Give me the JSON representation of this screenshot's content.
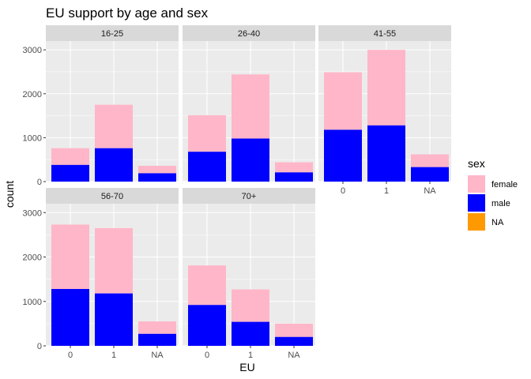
{
  "chart_data": {
    "type": "bar",
    "stacked": true,
    "title": "EU support by age and sex",
    "xlabel": "EU",
    "ylabel": "count",
    "ylim": [
      0,
      3200
    ],
    "y_ticks": [
      0,
      1000,
      2000,
      3000
    ],
    "categories": [
      "0",
      "1",
      "NA"
    ],
    "series_colors": {
      "female": "#FFB6C8",
      "male": "#0000FF",
      "NA": "#FF9900"
    },
    "legend": {
      "title": "sex",
      "position": "right",
      "entries": [
        {
          "label": "female",
          "color": "#FFB6C8"
        },
        {
          "label": "male",
          "color": "#0000FF"
        },
        {
          "label": "NA",
          "color": "#FF9900"
        }
      ]
    },
    "panels": [
      {
        "label": "16-25",
        "male": [
          380,
          760,
          190
        ],
        "female": [
          380,
          990,
          170
        ]
      },
      {
        "label": "26-40",
        "male": [
          680,
          980,
          210
        ],
        "female": [
          830,
          1460,
          230
        ]
      },
      {
        "label": "41-55",
        "male": [
          1180,
          1280,
          330
        ],
        "female": [
          1310,
          1720,
          290
        ]
      },
      {
        "label": "56-70",
        "male": [
          1280,
          1180,
          270
        ],
        "female": [
          1450,
          1470,
          280
        ]
      },
      {
        "label": "70+",
        "male": [
          920,
          540,
          200
        ],
        "female": [
          890,
          730,
          300
        ]
      }
    ]
  }
}
